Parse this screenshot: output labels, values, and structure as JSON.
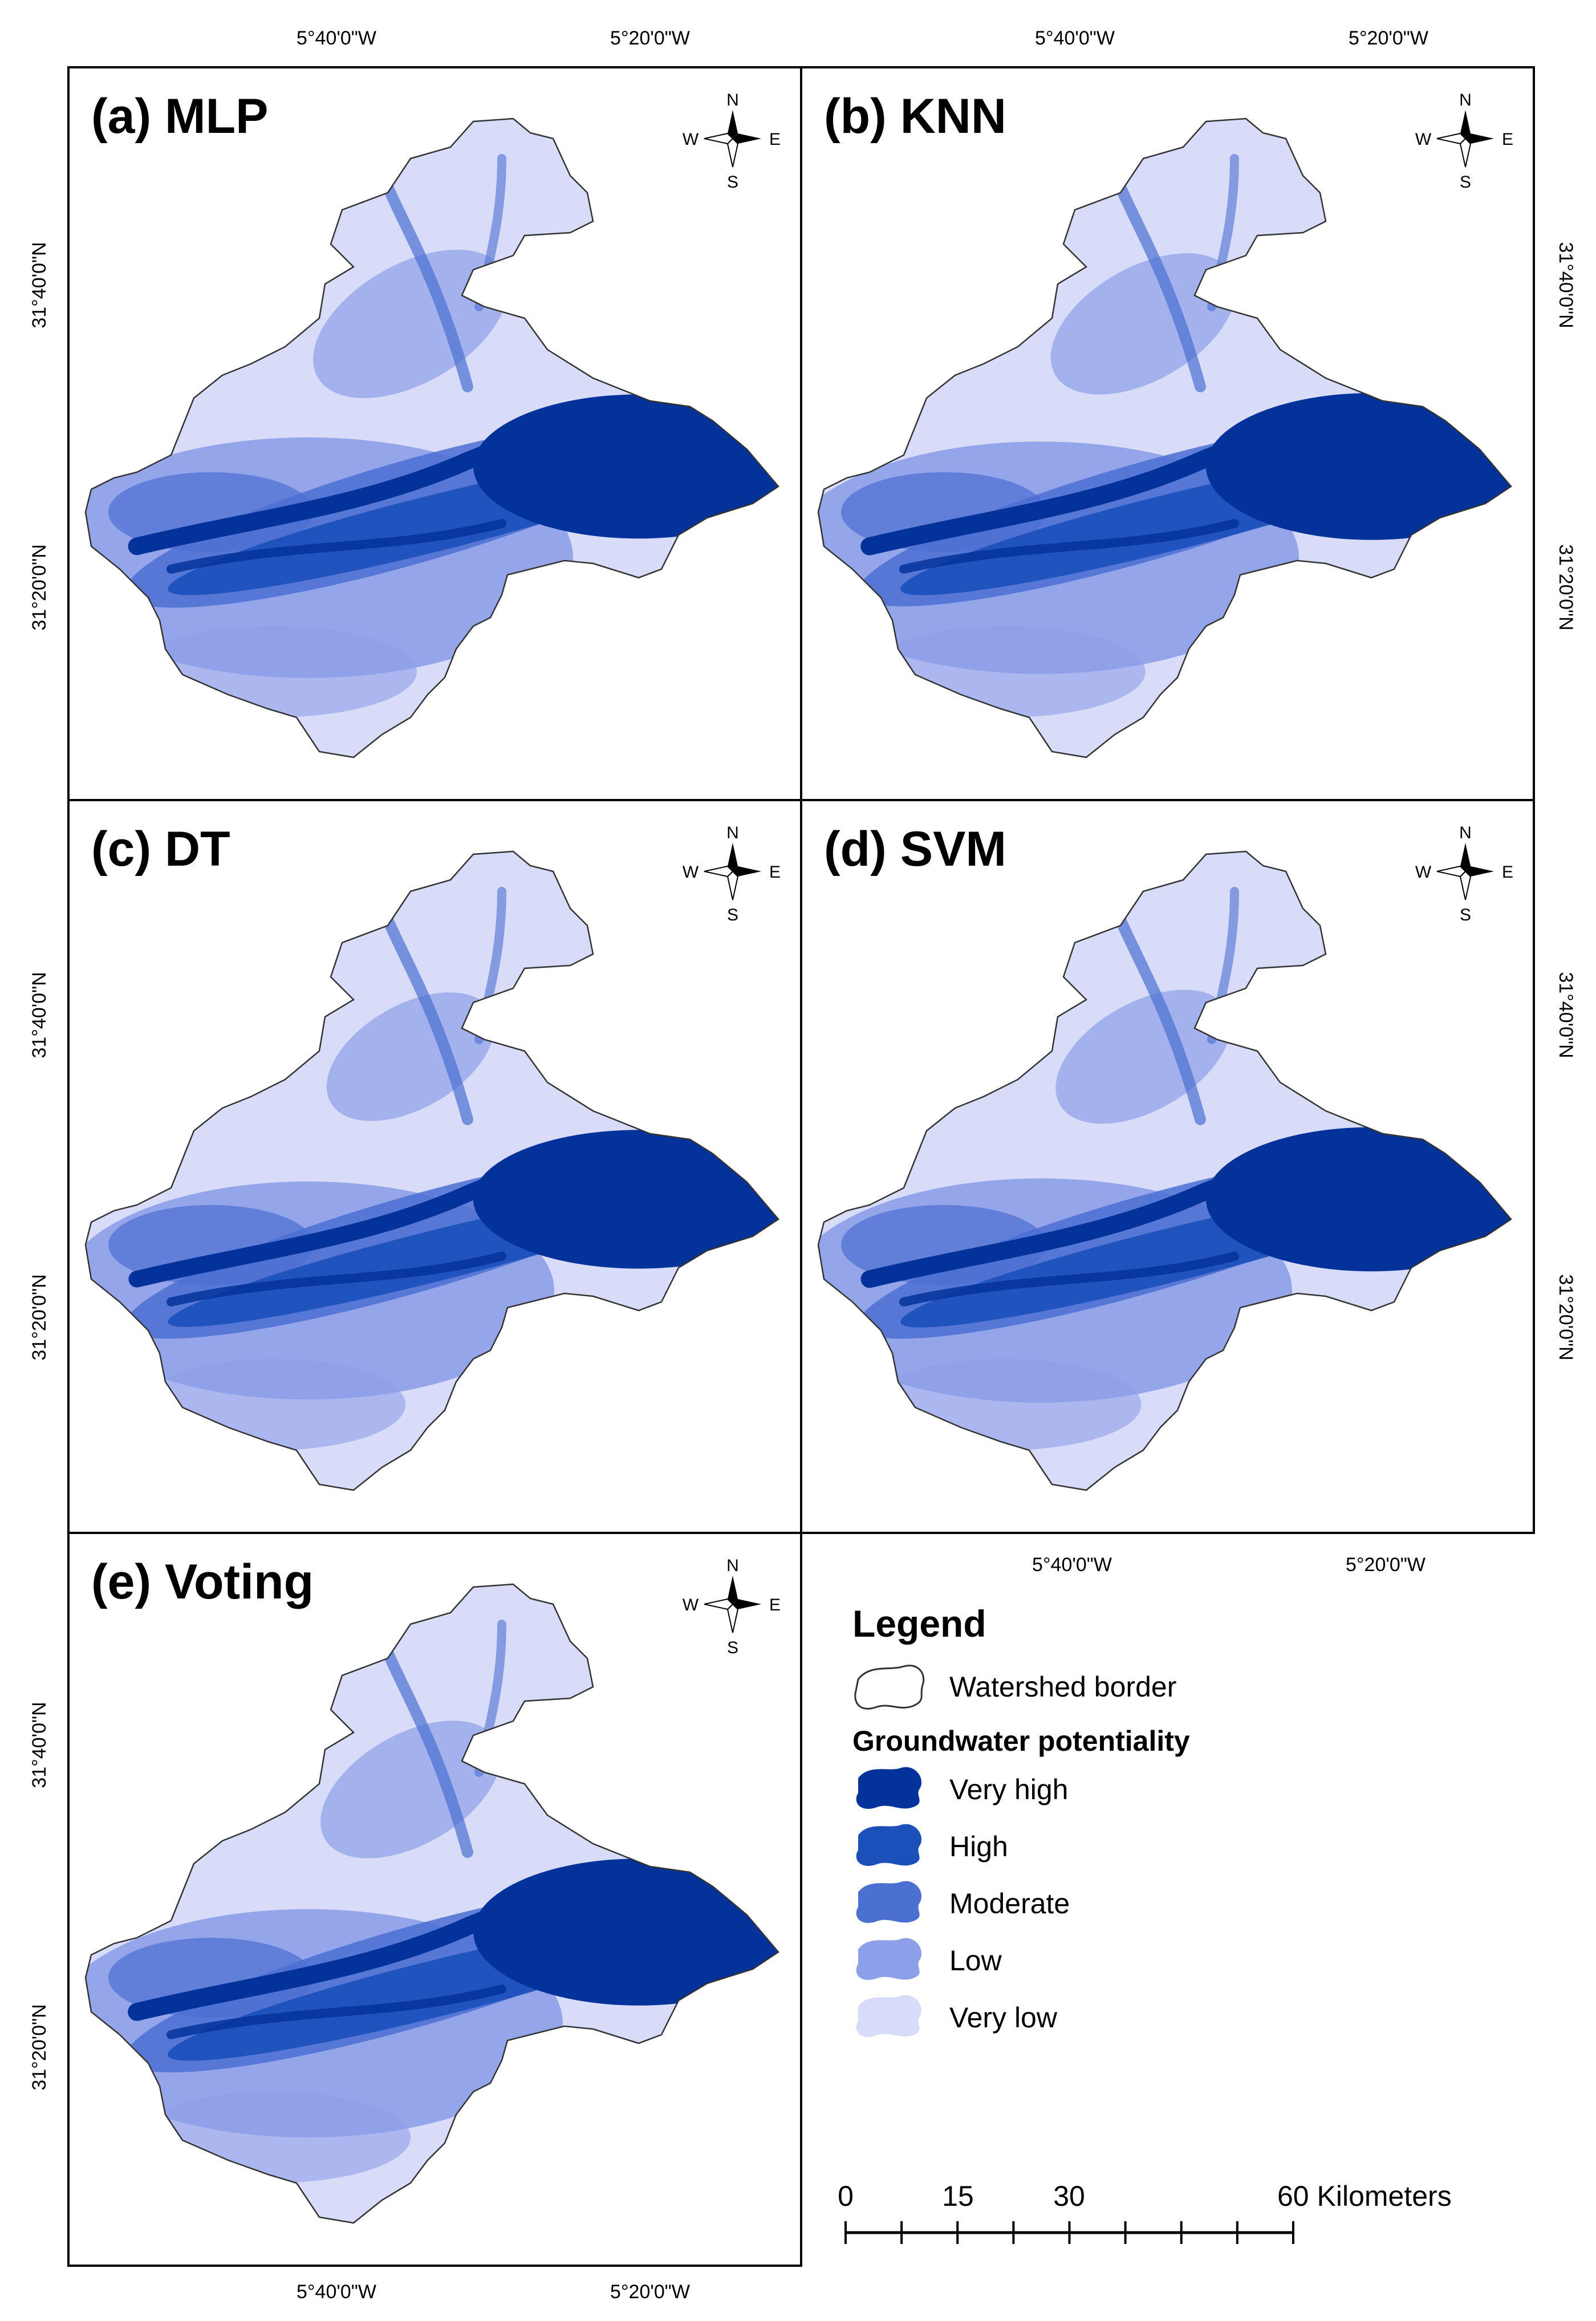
{
  "colors": {
    "very_high": "#03339a",
    "high": "#1b4fba",
    "moderate": "#4c6fd2",
    "low": "#8d9fe8",
    "very_low": "#d8dcf8",
    "frame": "#000000",
    "border": "#333333"
  },
  "panels": [
    {
      "title": "(a) MLP",
      "mix": [
        0.22,
        0.12,
        0.18,
        0.3,
        0.18
      ]
    },
    {
      "title": "(b) KNN",
      "mix": [
        0.24,
        0.12,
        0.12,
        0.22,
        0.3
      ]
    },
    {
      "title": "(c) DT",
      "mix": [
        0.18,
        0.08,
        0.1,
        0.08,
        0.56
      ]
    },
    {
      "title": "(d) SVM",
      "mix": [
        0.22,
        0.1,
        0.1,
        0.14,
        0.44
      ]
    },
    {
      "title": "(e) Voting",
      "mix": [
        0.24,
        0.12,
        0.14,
        0.18,
        0.32
      ]
    }
  ],
  "compass": {
    "n": "N",
    "s": "S",
    "e": "E",
    "w": "W"
  },
  "ticks": {
    "lon_left": "5°40'0\"W",
    "lon_right": "5°20'0\"W",
    "lat_top": "31°40'0\"N",
    "lat_bottom": "31°20'0\"N"
  },
  "legend": {
    "title": "Legend",
    "border_label": "Watershed border",
    "subtitle": "Groundwater potentiality",
    "items": [
      {
        "label": "Very high",
        "color_key": "very_high"
      },
      {
        "label": "High",
        "color_key": "high"
      },
      {
        "label": "Moderate",
        "color_key": "moderate"
      },
      {
        "label": "Low",
        "color_key": "low"
      },
      {
        "label": "Very low",
        "color_key": "very_low"
      }
    ]
  },
  "scale_bar": {
    "labels": [
      "0",
      "15",
      "30",
      "60 Kilometers"
    ]
  }
}
